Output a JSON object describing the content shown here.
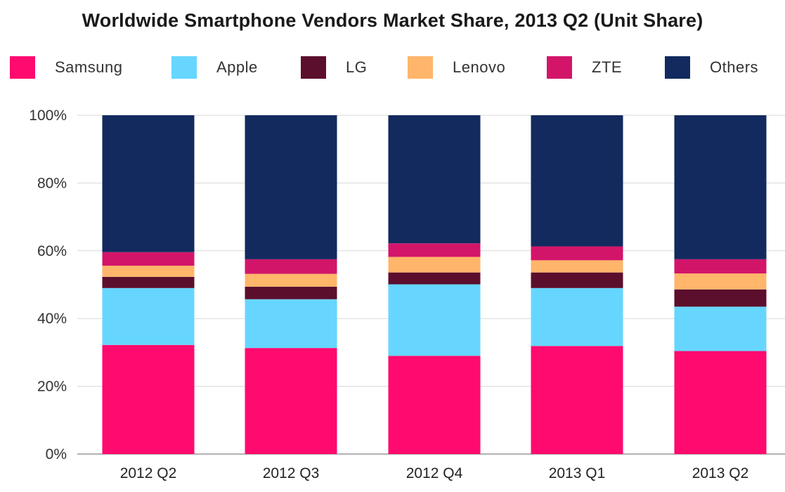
{
  "chart_data": {
    "type": "bar",
    "stacked": true,
    "title": "Worldwide Smartphone Vendors Market Share, 2013 Q2 (Unit Share)",
    "xlabel": "",
    "ylabel": "",
    "ylim": [
      0,
      100
    ],
    "yticks": [
      "0%",
      "20%",
      "40%",
      "60%",
      "80%",
      "100%"
    ],
    "grid": true,
    "legend_position": "top",
    "categories": [
      "2012 Q2",
      "2012 Q3",
      "2012 Q4",
      "2013 Q1",
      "2013 Q2"
    ],
    "series": [
      {
        "name": "Samsung",
        "color": "#ff0a6e",
        "values": [
          32.2,
          31.3,
          29.0,
          31.9,
          30.4
        ]
      },
      {
        "name": "Apple",
        "color": "#66d6ff",
        "values": [
          16.8,
          14.4,
          21.1,
          17.1,
          13.1
        ]
      },
      {
        "name": "LG",
        "color": "#5c0f2d",
        "values": [
          3.3,
          3.7,
          3.5,
          4.6,
          5.1
        ]
      },
      {
        "name": "Lenovo",
        "color": "#ffb56a",
        "values": [
          3.3,
          3.8,
          4.6,
          3.6,
          4.7
        ]
      },
      {
        "name": "ZTE",
        "color": "#d3156a",
        "values": [
          4.0,
          4.3,
          4.0,
          4.1,
          4.2
        ]
      },
      {
        "name": "Others",
        "color": "#122a5e",
        "values": [
          40.4,
          42.5,
          37.8,
          38.7,
          42.5
        ]
      }
    ]
  }
}
